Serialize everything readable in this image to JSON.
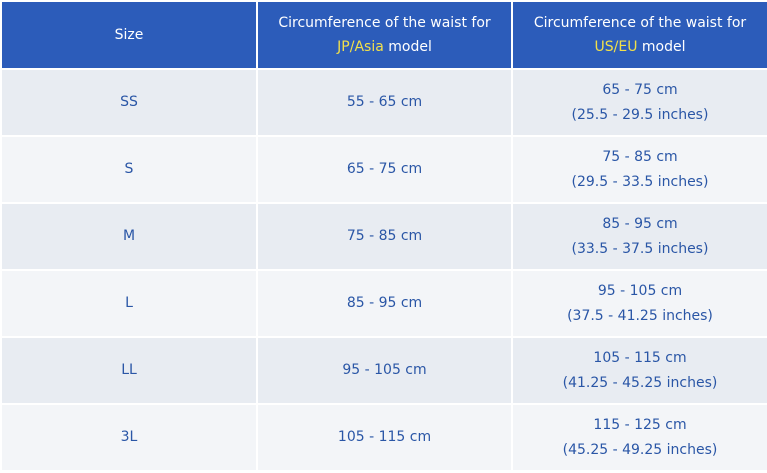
{
  "header": {
    "columns": [
      {
        "text": "Size"
      },
      {
        "line1": "Circumference of the waist for",
        "highlight": "JP/Asia",
        "suffix": "model"
      },
      {
        "line1": "Circumference of the waist for",
        "highlight": "US/EU",
        "suffix": "model"
      }
    ]
  },
  "table": {
    "rows": [
      [
        "SS",
        "55 - 65 cm",
        "65 - 75 cm",
        "(25.5 - 29.5 inches)"
      ],
      [
        "S",
        "65 - 75 cm",
        "75 - 85 cm",
        "(29.5 - 33.5 inches)"
      ],
      [
        "M",
        "75 - 85 cm",
        "85 - 95 cm",
        "(33.5 - 37.5 inches)"
      ],
      [
        "L",
        "85 - 95 cm",
        "95 - 105 cm",
        "(37.5 - 41.25 inches)"
      ],
      [
        "LL",
        "95 - 105 cm",
        "105 - 115 cm",
        "(41.25 - 45.25 inches)"
      ],
      [
        "3L",
        "105 - 115 cm",
        "115 - 125 cm",
        "(45.25 - 49.25 inches)"
      ]
    ]
  }
}
